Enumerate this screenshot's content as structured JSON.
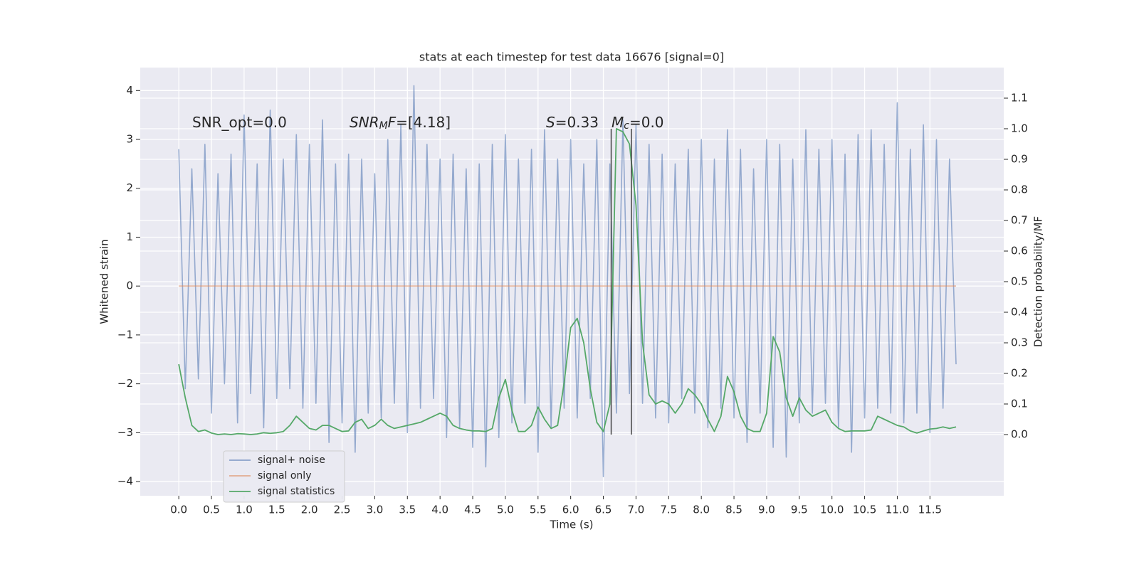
{
  "chart_data": {
    "type": "line",
    "title": "stats at each timestep for test data 16676 [signal=0]",
    "xlabel": "Time (s)",
    "ylabel": "Whitened strain",
    "y2label": "Detection probability/MF",
    "xlim": [
      -0.59,
      12.63
    ],
    "ylim": [
      -4.29,
      4.47
    ],
    "y2lim": [
      -0.2,
      1.2
    ],
    "xticks": [
      {
        "value": 0,
        "label": "0.0"
      },
      0.5,
      {
        "value": 1,
        "label": "1.0"
      },
      1.5,
      {
        "value": 2,
        "label": "2.0"
      },
      2.5,
      {
        "value": 3,
        "label": "3.0"
      },
      3.5,
      {
        "value": 4,
        "label": "4.0"
      },
      4.5,
      {
        "value": 5,
        "label": "5.0"
      },
      5.5,
      {
        "value": 6,
        "label": "6.0"
      },
      6.5,
      {
        "value": 7,
        "label": "7.0"
      },
      7.5,
      {
        "value": 8,
        "label": "8.0"
      },
      8.5,
      {
        "value": 9,
        "label": "9.0"
      },
      9.5,
      {
        "value": 10,
        "label": "10.0"
      },
      10.5,
      {
        "value": 11,
        "label": "11.0"
      },
      11.5
    ],
    "yticks": [
      {
        "value": -4,
        "label": "−4"
      },
      {
        "value": -3,
        "label": "−3"
      },
      {
        "value": -2,
        "label": "−2"
      },
      {
        "value": -1,
        "label": "−1"
      },
      0,
      1,
      2,
      3,
      4
    ],
    "y2ticks": [
      {
        "value": 0,
        "label": "0.0"
      },
      0.1,
      0.2,
      0.3,
      0.4,
      0.5,
      0.6,
      0.7,
      0.8,
      0.9,
      {
        "value": 1,
        "label": "1.0"
      },
      1.1
    ],
    "grid": true,
    "legend": "lower left",
    "x": [
      0,
      0.1,
      0.2,
      0.3,
      0.4,
      0.5,
      0.6,
      0.7,
      0.8,
      0.9,
      1,
      1.1,
      1.2,
      1.3,
      1.4,
      1.5,
      1.6,
      1.7,
      1.8,
      1.9,
      2,
      2.1,
      2.2,
      2.3,
      2.4,
      2.5,
      2.6,
      2.7,
      2.8,
      2.9,
      3,
      3.1,
      3.2,
      3.3,
      3.4,
      3.5,
      3.6,
      3.7,
      3.8,
      3.9,
      4,
      4.1,
      4.2,
      4.3,
      4.4,
      4.5,
      4.6,
      4.7,
      4.8,
      4.9,
      5,
      5.1,
      5.2,
      5.3,
      5.4,
      5.5,
      5.6,
      5.7,
      5.8,
      5.9,
      6,
      6.1,
      6.2,
      6.3,
      6.4,
      6.5,
      6.6,
      6.7,
      6.8,
      6.9,
      7,
      7.1,
      7.2,
      7.3,
      7.4,
      7.5,
      7.6,
      7.7,
      7.8,
      7.9,
      8,
      8.1,
      8.2,
      8.3,
      8.4,
      8.5,
      8.6,
      8.7,
      8.8,
      8.9,
      9,
      9.1,
      9.2,
      9.3,
      9.4,
      9.5,
      9.6,
      9.7,
      9.8,
      9.9,
      10,
      10.1,
      10.2,
      10.3,
      10.4,
      10.5,
      10.6,
      10.7,
      10.8,
      10.9,
      11,
      11.1,
      11.2,
      11.3,
      11.4,
      11.5,
      11.6,
      11.7,
      11.8,
      11.9
    ],
    "series": [
      {
        "name": "signal+ noise",
        "color": "#4c72b0",
        "values": [
          2.8,
          -2.1,
          2.4,
          -1.9,
          2.9,
          -2.6,
          2.3,
          -2.0,
          2.7,
          -2.8,
          3.5,
          -2.2,
          2.5,
          -2.9,
          3.6,
          -2.3,
          2.6,
          -2.1,
          3.1,
          -2.5,
          2.9,
          -2.4,
          3.4,
          -3.2,
          2.5,
          -2.8,
          2.7,
          -3.4,
          2.6,
          -2.6,
          2.3,
          -2.7,
          3.0,
          -2.4,
          3.3,
          -3.0,
          4.1,
          -2.5,
          2.9,
          -2.3,
          2.6,
          -3.1,
          2.7,
          -2.9,
          2.4,
          -3.3,
          2.5,
          -3.7,
          2.9,
          -3.1,
          3.1,
          -2.8,
          2.6,
          -2.4,
          2.8,
          -3.4,
          3.2,
          -2.9,
          2.6,
          -2.5,
          3.0,
          -2.7,
          2.5,
          -2.3,
          3.0,
          -3.9,
          2.5,
          -2.6,
          3.4,
          -2.2,
          3.3,
          -2.4,
          2.9,
          -2.7,
          2.7,
          -2.8,
          2.5,
          -2.3,
          2.8,
          -2.6,
          3.0,
          -2.9,
          2.6,
          -2.5,
          3.2,
          -2.7,
          2.8,
          -3.2,
          2.4,
          -2.6,
          3.0,
          -3.3,
          2.9,
          -3.5,
          2.6,
          -2.8,
          3.2,
          -2.6,
          2.8,
          -2.4,
          3.0,
          -2.9,
          2.7,
          -3.4,
          3.1,
          -2.7,
          3.2,
          -2.5,
          2.9,
          -2.6,
          3.75,
          -2.8,
          2.8,
          -2.6,
          3.3,
          -3.0,
          3.0,
          -2.5,
          2.6,
          -1.6
        ]
      },
      {
        "name": "signal only",
        "color": "#dd8452",
        "values": [
          0,
          0,
          0,
          0,
          0,
          0,
          0,
          0,
          0,
          0,
          0,
          0,
          0,
          0,
          0,
          0,
          0,
          0,
          0,
          0,
          0,
          0,
          0,
          0,
          0,
          0,
          0,
          0,
          0,
          0,
          0,
          0,
          0,
          0,
          0,
          0,
          0,
          0,
          0,
          0,
          0,
          0,
          0,
          0,
          0,
          0,
          0,
          0,
          0,
          0,
          0,
          0,
          0,
          0,
          0,
          0,
          0,
          0,
          0,
          0,
          0,
          0,
          0,
          0,
          0,
          0,
          0,
          0,
          0,
          0,
          0,
          0,
          0,
          0,
          0,
          0,
          0,
          0,
          0,
          0,
          0,
          0,
          0,
          0,
          0,
          0,
          0,
          0,
          0,
          0,
          0,
          0,
          0,
          0,
          0,
          0,
          0,
          0,
          0,
          0,
          0,
          0,
          0,
          0,
          0,
          0,
          0,
          0,
          0,
          0,
          0,
          0,
          0,
          0,
          0,
          0,
          0,
          0,
          0,
          0
        ]
      },
      {
        "name": "signal statistics",
        "color": "#55a868",
        "axis": "y2",
        "values": [
          0.23,
          0.12,
          0.03,
          0.01,
          0.015,
          0.005,
          0.0,
          0.002,
          0.0,
          0.003,
          0.002,
          0.0,
          0.002,
          0.006,
          0.004,
          0.006,
          0.01,
          0.03,
          0.06,
          0.04,
          0.02,
          0.015,
          0.03,
          0.03,
          0.02,
          0.01,
          0.012,
          0.04,
          0.05,
          0.02,
          0.03,
          0.05,
          0.03,
          0.02,
          0.025,
          0.03,
          0.035,
          0.04,
          0.05,
          0.06,
          0.07,
          0.06,
          0.03,
          0.02,
          0.015,
          0.012,
          0.012,
          0.01,
          0.02,
          0.12,
          0.18,
          0.08,
          0.01,
          0.01,
          0.03,
          0.09,
          0.05,
          0.02,
          0.03,
          0.17,
          0.35,
          0.38,
          0.3,
          0.15,
          0.04,
          0.01,
          0.1,
          1.0,
          0.99,
          0.95,
          0.75,
          0.3,
          0.13,
          0.1,
          0.11,
          0.1,
          0.07,
          0.1,
          0.15,
          0.13,
          0.1,
          0.05,
          0.01,
          0.06,
          0.19,
          0.14,
          0.06,
          0.02,
          0.01,
          0.01,
          0.07,
          0.32,
          0.27,
          0.12,
          0.06,
          0.12,
          0.08,
          0.06,
          0.07,
          0.08,
          0.04,
          0.02,
          0.01,
          0.012,
          0.012,
          0.012,
          0.015,
          0.06,
          0.05,
          0.04,
          0.03,
          0.025,
          0.012,
          0.005,
          0.012,
          0.018,
          0.02,
          0.025,
          0.02,
          0.025
        ]
      }
    ],
    "vlines": {
      "x": [
        6.62,
        6.93
      ],
      "y2range": [
        0,
        1.0
      ],
      "color": "#444444"
    },
    "annotations": [
      {
        "segments": [
          {
            "text": "SNR_opt=0.0"
          }
        ]
      },
      {
        "segments": [
          {
            "text": "SNR",
            "italic": true
          },
          {
            "text": "M",
            "italic": true,
            "sub": true
          },
          {
            "text": "F",
            "italic": true
          },
          {
            "text": "=[4.18]"
          }
        ]
      },
      {
        "segments": [
          {
            "text": "S",
            "italic": true
          },
          {
            "text": "=0.33"
          }
        ]
      },
      {
        "segments": [
          {
            "text": "M",
            "italic": true
          },
          {
            "text": "c",
            "italic": true,
            "sub": true
          },
          {
            "text": "=0.0"
          }
        ]
      }
    ]
  }
}
